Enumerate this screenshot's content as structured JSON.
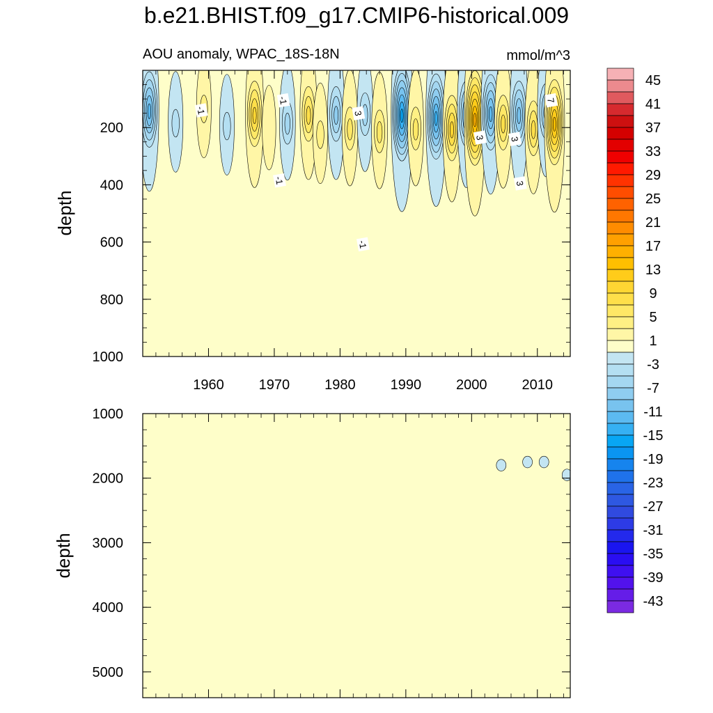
{
  "title": "b.e21.BHIST.f09_g17.CMIP6-historical.009",
  "chart_data": {
    "type": "contour",
    "variable": "AOU anomaly",
    "region": "WPAC_18S-18N",
    "left_subtitle": "AOU anomaly, WPAC_18S-18N",
    "units": "mmol/m^3",
    "colorbar": {
      "min": -45,
      "max": 47,
      "step": 2,
      "labels": [
        "45",
        "41",
        "37",
        "33",
        "29",
        "25",
        "21",
        "17",
        "13",
        "9",
        "5",
        "1",
        "-3",
        "-7",
        "-11",
        "-15",
        "-19",
        "-23",
        "-27",
        "-31",
        "-35",
        "-39",
        "-43"
      ],
      "label_values": [
        45,
        41,
        37,
        33,
        29,
        25,
        21,
        17,
        13,
        9,
        5,
        1,
        -3,
        -7,
        -11,
        -15,
        -19,
        -23,
        -27,
        -31,
        -35,
        -39,
        -43
      ]
    },
    "panels": [
      {
        "id": "upper",
        "ylabel": "depth",
        "xrange": [
          1950,
          2015
        ],
        "yrange": [
          0,
          1000
        ],
        "y_reversed": true,
        "xticks": [
          1960,
          1970,
          1980,
          1990,
          2000,
          2010
        ],
        "xtick_labels": [
          "1960",
          "1970",
          "1980",
          "1990",
          "2000",
          "2010"
        ],
        "yticks": [
          200,
          400,
          600,
          800,
          1000
        ],
        "ytick_labels": [
          "200",
          "400",
          "600",
          "800",
          "1000"
        ],
        "contour_labels": [
          {
            "text": "-1",
            "year": 1958.9,
            "depth": 140
          },
          {
            "text": "-1",
            "year": 1971.4,
            "depth": 105
          },
          {
            "text": "-1",
            "year": 1970.8,
            "depth": 385
          },
          {
            "text": "3",
            "year": 1982.8,
            "depth": 150
          },
          {
            "text": "-1",
            "year": 1983.5,
            "depth": 608
          },
          {
            "text": "3",
            "year": 2001.3,
            "depth": 235
          },
          {
            "text": "3",
            "year": 2006.6,
            "depth": 240
          },
          {
            "text": "3",
            "year": 2007.4,
            "depth": 395
          },
          {
            "text": "7",
            "year": 2012.1,
            "depth": 105
          }
        ],
        "features": [
          {
            "year": 1951.0,
            "depth": 135,
            "value": -11
          },
          {
            "year": 1955.0,
            "depth": 180,
            "value": -3
          },
          {
            "year": 1959.3,
            "depth": 130,
            "value": 3
          },
          {
            "year": 1962.8,
            "depth": 190,
            "value": -3
          },
          {
            "year": 1967.0,
            "depth": 150,
            "value": 9
          },
          {
            "year": 1969.2,
            "depth": 200,
            "value": 2
          },
          {
            "year": 1972.0,
            "depth": 180,
            "value": -5
          },
          {
            "year": 1975.2,
            "depth": 150,
            "value": 7
          },
          {
            "year": 1977.0,
            "depth": 220,
            "value": 3
          },
          {
            "year": 1979.4,
            "depth": 150,
            "value": -7
          },
          {
            "year": 1981.5,
            "depth": 200,
            "value": 5
          },
          {
            "year": 1983.8,
            "depth": 150,
            "value": -5
          },
          {
            "year": 1986.0,
            "depth": 210,
            "value": 5
          },
          {
            "year": 1989.4,
            "depth": 150,
            "value": -15
          },
          {
            "year": 1991.5,
            "depth": 200,
            "value": 5
          },
          {
            "year": 1994.6,
            "depth": 160,
            "value": -13
          },
          {
            "year": 1997.0,
            "depth": 200,
            "value": 9
          },
          {
            "year": 1999.2,
            "depth": 150,
            "value": -9
          },
          {
            "year": 2000.5,
            "depth": 165,
            "value": 15
          },
          {
            "year": 2002.9,
            "depth": 145,
            "value": -11
          },
          {
            "year": 2004.8,
            "depth": 180,
            "value": 7
          },
          {
            "year": 2007.2,
            "depth": 150,
            "value": -9
          },
          {
            "year": 2009.4,
            "depth": 200,
            "value": 7
          },
          {
            "year": 2011.3,
            "depth": 140,
            "value": -7
          },
          {
            "year": 2012.6,
            "depth": 180,
            "value": 13
          }
        ]
      },
      {
        "id": "lower",
        "ylabel": "depth",
        "xrange": [
          1950,
          2015
        ],
        "yrange": [
          1000,
          5400
        ],
        "y_reversed": true,
        "yticks": [
          1000,
          2000,
          3000,
          4000,
          5000
        ],
        "ytick_labels": [
          "1000",
          "2000",
          "3000",
          "4000",
          "5000"
        ],
        "features": [
          {
            "year": 2004.5,
            "depth": 1800,
            "value": -2
          },
          {
            "year": 2008.5,
            "depth": 1750,
            "value": -2
          },
          {
            "year": 2011.0,
            "depth": 1750,
            "value": -2
          },
          {
            "year": 2014.5,
            "depth": 1950,
            "value": -2
          }
        ]
      }
    ]
  }
}
